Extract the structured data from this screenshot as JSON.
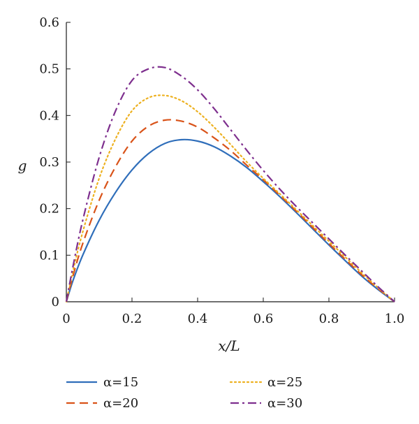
{
  "chart_data": {
    "type": "line",
    "title": "",
    "xlabel": "x/L",
    "ylabel": "g",
    "xlim": [
      0,
      1.0
    ],
    "ylim": [
      0,
      0.6
    ],
    "x_ticks": [
      0,
      0.2,
      0.4,
      0.6,
      0.8,
      1.0
    ],
    "x_tick_labels": [
      "0",
      "0.2",
      "0.4",
      "0.6",
      "0.8",
      "1.0"
    ],
    "y_ticks": [
      0,
      0.1,
      0.2,
      0.3,
      0.4,
      0.5,
      0.6
    ],
    "y_tick_labels": [
      "0",
      "0.1",
      "0.2",
      "0.3",
      "0.4",
      "0.5",
      "0.6"
    ],
    "grid": false,
    "legend_position": "bottom",
    "x": [
      0,
      0.02,
      0.05,
      0.1,
      0.15,
      0.2,
      0.25,
      0.3,
      0.35,
      0.4,
      0.45,
      0.5,
      0.55,
      0.6,
      0.65,
      0.7,
      0.75,
      0.8,
      0.85,
      0.9,
      0.95,
      1.0
    ],
    "series": [
      {
        "name": "α=15",
        "color": "#2f6eba",
        "dash": "solid",
        "values": [
          0,
          0.045,
          0.1,
          0.175,
          0.235,
          0.283,
          0.318,
          0.34,
          0.348,
          0.345,
          0.333,
          0.313,
          0.288,
          0.258,
          0.226,
          0.192,
          0.157,
          0.122,
          0.088,
          0.055,
          0.026,
          0
        ]
      },
      {
        "name": "α=20",
        "color": "#d95319",
        "dash": "dashed",
        "values": [
          0,
          0.055,
          0.125,
          0.218,
          0.29,
          0.345,
          0.377,
          0.39,
          0.388,
          0.375,
          0.352,
          0.325,
          0.293,
          0.262,
          0.229,
          0.195,
          0.16,
          0.125,
          0.091,
          0.058,
          0.028,
          0
        ]
      },
      {
        "name": "α=25",
        "color": "#edb120",
        "dash": "dotted",
        "values": [
          0,
          0.065,
          0.15,
          0.265,
          0.35,
          0.41,
          0.438,
          0.443,
          0.432,
          0.408,
          0.375,
          0.338,
          0.3,
          0.265,
          0.232,
          0.198,
          0.164,
          0.13,
          0.096,
          0.062,
          0.03,
          0
        ]
      },
      {
        "name": "α=30",
        "color": "#7e2f8e",
        "dash": "dashdot",
        "values": [
          0,
          0.075,
          0.175,
          0.31,
          0.41,
          0.475,
          0.5,
          0.503,
          0.485,
          0.455,
          0.415,
          0.37,
          0.325,
          0.282,
          0.242,
          0.205,
          0.17,
          0.135,
          0.1,
          0.066,
          0.032,
          0
        ]
      }
    ]
  }
}
